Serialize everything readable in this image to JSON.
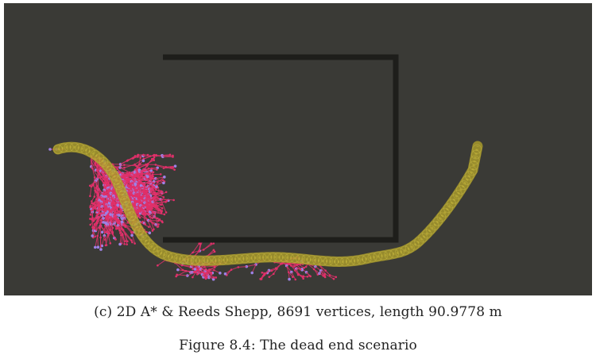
{
  "figure": {
    "subcaption": "(c) 2D A* & Reeds Shepp, 8691 vertices, length 90.9778 m",
    "caption": "Figure 8.4: The dead end scenario"
  },
  "colors": {
    "background": "#3a3a36",
    "obstacle": "#1e1e1b",
    "tree_edges": "#e0306a",
    "tree_vertices": "#9d82e6",
    "path": "#a89a2a"
  }
}
